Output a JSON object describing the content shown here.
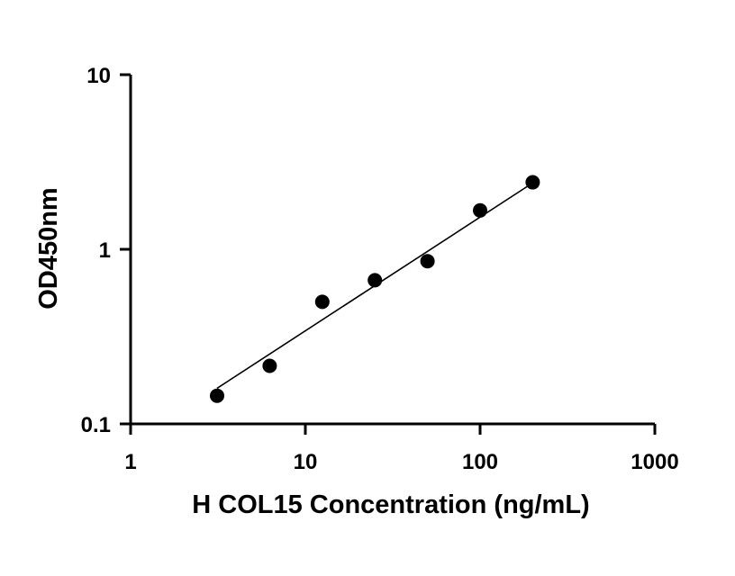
{
  "chart_data": {
    "type": "scatter",
    "title": "",
    "xlabel": "H COL15 Concentration (ng/mL)",
    "ylabel": "OD450nm",
    "x_scale": "log",
    "y_scale": "log",
    "xlim": [
      1,
      1000
    ],
    "ylim": [
      0.1,
      10
    ],
    "x_ticks": [
      1,
      10,
      100,
      1000
    ],
    "x_tick_labels": [
      "1",
      "10",
      "100",
      "1000"
    ],
    "y_ticks": [
      0.1,
      1,
      10
    ],
    "y_tick_labels": [
      "0.1",
      "1",
      "10"
    ],
    "grid": false,
    "legend": "none",
    "series": [
      {
        "x": [
          3.125,
          6.25,
          12.5,
          25,
          50,
          100,
          200
        ],
        "y": [
          0.145,
          0.215,
          0.5,
          0.665,
          0.855,
          1.67,
          2.42
        ]
      }
    ],
    "fit_line": {
      "x": [
        3.125,
        200
      ],
      "y": [
        0.16,
        2.4
      ]
    }
  }
}
